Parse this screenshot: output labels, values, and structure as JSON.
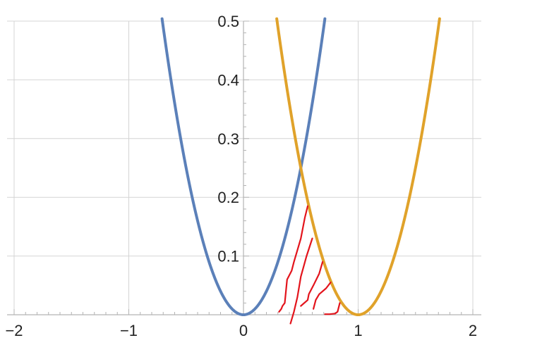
{
  "chart_data": {
    "type": "line",
    "title": "",
    "xlabel": "",
    "ylabel": "",
    "xlim": [
      -2.05,
      2.1
    ],
    "ylim": [
      0,
      0.5
    ],
    "grid": true,
    "x_ticks": [
      {
        "value": -2,
        "label": "−2"
      },
      {
        "value": -1,
        "label": "−1"
      },
      {
        "value": 0,
        "label": "0"
      },
      {
        "value": 1,
        "label": "1"
      },
      {
        "value": 2,
        "label": "2"
      }
    ],
    "y_ticks": [
      {
        "value": 0.1,
        "label": "0.1"
      },
      {
        "value": 0.2,
        "label": "0.2"
      },
      {
        "value": 0.3,
        "label": "0.3"
      },
      {
        "value": 0.4,
        "label": "0.4"
      },
      {
        "value": 0.5,
        "label": "0.5"
      }
    ],
    "series": [
      {
        "formula": "y = x^2",
        "color": "#5b80b9",
        "x_range": [
          -0.71,
          0.71
        ]
      },
      {
        "formula": "y = (x - 1)^2",
        "color": "#e0a22a",
        "x_range": [
          0.29,
          1.71
        ]
      }
    ],
    "annotations": {
      "type": "hand-drawn hatching",
      "color": "#e3141c",
      "strokes": [
        [
          [
            0.56,
            0.185
          ],
          [
            0.535,
            0.165
          ],
          [
            0.5,
            0.13
          ],
          [
            0.47,
            0.11
          ],
          [
            0.44,
            0.09
          ],
          [
            0.42,
            0.075
          ],
          [
            0.38,
            0.06
          ],
          [
            0.36,
            0.02
          ],
          [
            0.34,
            0.015
          ],
          [
            0.33,
            0.01
          ],
          [
            0.31,
            0.005
          ]
        ],
        [
          [
            0.6,
            0.13
          ],
          [
            0.55,
            0.1
          ],
          [
            0.5,
            0.065
          ],
          [
            0.47,
            0.03
          ],
          [
            0.44,
            0.005
          ],
          [
            0.41,
            -0.015
          ]
        ],
        [
          [
            0.69,
            0.09
          ],
          [
            0.66,
            0.07
          ],
          [
            0.61,
            0.05
          ],
          [
            0.57,
            0.035
          ],
          [
            0.56,
            0.025
          ],
          [
            0.5,
            0.015
          ]
        ],
        [
          [
            0.76,
            0.055
          ],
          [
            0.72,
            0.045
          ],
          [
            0.66,
            0.035
          ],
          [
            0.63,
            0.025
          ],
          [
            0.61,
            0.01
          ]
        ],
        [
          [
            0.84,
            0.02
          ],
          [
            0.82,
            0.005
          ],
          [
            0.8,
            0.002
          ],
          [
            0.75,
            0.001
          ],
          [
            0.71,
            0.001
          ]
        ]
      ]
    }
  }
}
